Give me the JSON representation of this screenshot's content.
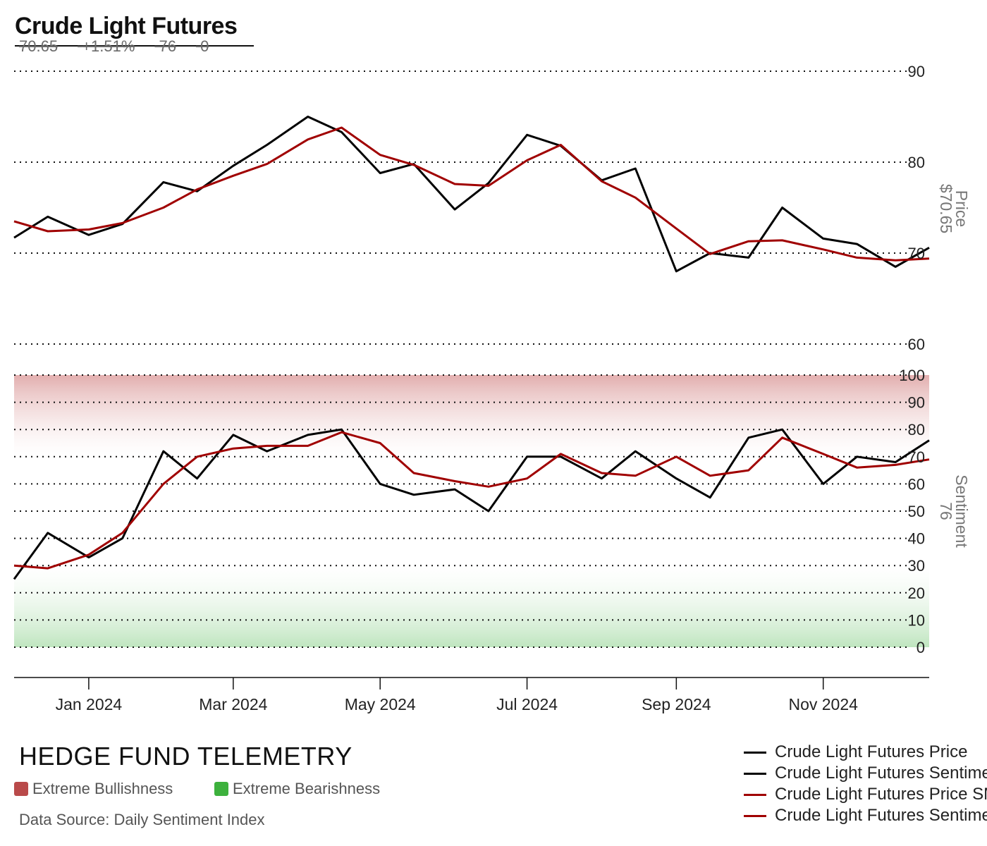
{
  "header": {
    "title": "Crude Light Futures",
    "stats": [
      "70.65",
      "+1.51%",
      "76",
      "0"
    ]
  },
  "footer": {
    "brand": "HEDGE FUND TELEMETRY",
    "legend_bull": "Extreme Bullishness",
    "legend_bear": "Extreme Bearishness",
    "source": "Data Source: Daily Sentiment Index",
    "bull_color": "#b94a4a",
    "bear_color": "#3db13d"
  },
  "chart_data": {
    "type": "line",
    "x_ticks": [
      "Jan 2024",
      "Mar 2024",
      "May 2024",
      "Jul 2024",
      "Sep 2024",
      "Nov 2024"
    ],
    "price_axis": {
      "label": "Price",
      "current_label": "$70.65",
      "ticks": [
        90,
        80,
        70,
        60
      ],
      "ylim": [
        60,
        90
      ]
    },
    "sentiment_axis": {
      "label": "Sentiment",
      "current_label": "76",
      "ticks": [
        100,
        90,
        80,
        70,
        60,
        50,
        40,
        30,
        20,
        10,
        0
      ],
      "ylim": [
        0,
        100
      ]
    },
    "bands": [
      {
        "name": "Extreme Bullishness",
        "from": 70,
        "to": 100,
        "color": "#e6b3b3"
      },
      {
        "name": "Extreme Bearishness",
        "from": 0,
        "to": 30,
        "color": "#c2e6c2"
      }
    ],
    "grid": true,
    "series": [
      {
        "name": "Crude Light Futures Price",
        "panel": "price",
        "color": "#000000",
        "x": [
          "2023-12-01",
          "2023-12-15",
          "2024-01-01",
          "2024-01-15",
          "2024-02-01",
          "2024-02-15",
          "2024-03-01",
          "2024-03-15",
          "2024-04-01",
          "2024-04-15",
          "2024-05-01",
          "2024-05-15",
          "2024-06-01",
          "2024-06-15",
          "2024-07-01",
          "2024-07-15",
          "2024-08-01",
          "2024-08-15",
          "2024-09-01",
          "2024-09-15",
          "2024-10-01",
          "2024-10-15",
          "2024-11-01",
          "2024-11-15",
          "2024-12-01",
          "2024-12-15"
        ],
        "values": [
          71.7,
          74.0,
          72.0,
          73.2,
          77.8,
          76.8,
          79.6,
          81.9,
          85.0,
          83.3,
          78.8,
          79.8,
          74.8,
          77.7,
          83.0,
          81.8,
          78.0,
          79.3,
          68.0,
          70.0,
          69.5,
          75.0,
          71.6,
          71.0,
          68.5,
          70.6
        ]
      },
      {
        "name": "Crude Light Futures Sentiment",
        "panel": "sentiment",
        "color": "#000000",
        "x": [
          "2023-12-01",
          "2023-12-15",
          "2024-01-01",
          "2024-01-15",
          "2024-02-01",
          "2024-02-15",
          "2024-03-01",
          "2024-03-15",
          "2024-04-01",
          "2024-04-15",
          "2024-05-01",
          "2024-05-15",
          "2024-06-01",
          "2024-06-15",
          "2024-07-01",
          "2024-07-15",
          "2024-08-01",
          "2024-08-15",
          "2024-09-01",
          "2024-09-15",
          "2024-10-01",
          "2024-10-15",
          "2024-11-01",
          "2024-11-15",
          "2024-12-01",
          "2024-12-15"
        ],
        "values": [
          25,
          42,
          33,
          40,
          72,
          62,
          78,
          72,
          78,
          80,
          60,
          56,
          58,
          50,
          70,
          70,
          62,
          72,
          62,
          55,
          77,
          80,
          60,
          70,
          68,
          76
        ]
      },
      {
        "name": "Crude Light Futures Price SMA",
        "panel": "price",
        "color": "#a00000",
        "x": [
          "2023-12-01",
          "2023-12-15",
          "2024-01-01",
          "2024-01-15",
          "2024-02-01",
          "2024-02-15",
          "2024-03-01",
          "2024-03-15",
          "2024-04-01",
          "2024-04-15",
          "2024-05-01",
          "2024-05-15",
          "2024-06-01",
          "2024-06-15",
          "2024-07-01",
          "2024-07-15",
          "2024-08-01",
          "2024-08-15",
          "2024-09-01",
          "2024-09-15",
          "2024-10-01",
          "2024-10-15",
          "2024-11-01",
          "2024-11-15",
          "2024-12-01",
          "2024-12-15"
        ],
        "values": [
          73.5,
          72.4,
          72.6,
          73.3,
          75.0,
          77.0,
          78.5,
          79.8,
          82.5,
          83.8,
          80.8,
          79.7,
          77.6,
          77.4,
          80.2,
          81.9,
          77.9,
          76.1,
          72.7,
          69.9,
          71.3,
          71.4,
          70.4,
          69.5,
          69.2,
          69.4
        ]
      },
      {
        "name": "Crude Light Futures Sentiment SMA",
        "panel": "sentiment",
        "color": "#a00000",
        "x": [
          "2023-12-01",
          "2023-12-15",
          "2024-01-01",
          "2024-01-15",
          "2024-02-01",
          "2024-02-15",
          "2024-03-01",
          "2024-03-15",
          "2024-04-01",
          "2024-04-15",
          "2024-05-01",
          "2024-05-15",
          "2024-06-01",
          "2024-06-15",
          "2024-07-01",
          "2024-07-15",
          "2024-08-01",
          "2024-08-15",
          "2024-09-01",
          "2024-09-15",
          "2024-10-01",
          "2024-10-15",
          "2024-11-01",
          "2024-11-15",
          "2024-12-01",
          "2024-12-15"
        ],
        "values": [
          30,
          29,
          34,
          42,
          60,
          70,
          73,
          74,
          74,
          79,
          75,
          64,
          61,
          59,
          62,
          71,
          64,
          63,
          70,
          63,
          65,
          77,
          71,
          66,
          67,
          69
        ]
      }
    ]
  }
}
